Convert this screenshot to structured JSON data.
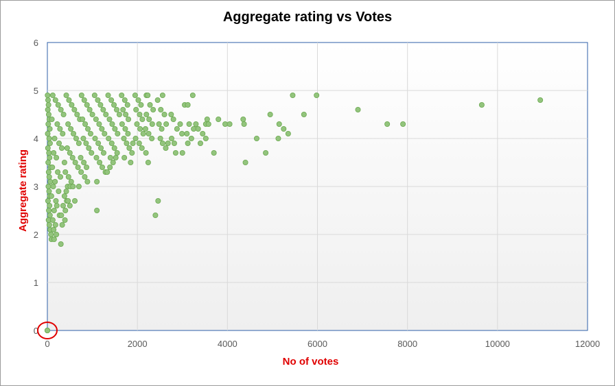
{
  "chart_data": {
    "type": "scatter",
    "title": "Aggregate rating vs Votes",
    "xlabel": "No of votes",
    "ylabel": "Aggregate rating",
    "xlim": [
      0,
      12000
    ],
    "ylim": [
      0,
      6
    ],
    "x_ticks": [
      "0",
      "2000",
      "4000",
      "6000",
      "8000",
      "10000",
      "12000"
    ],
    "y_ticks": [
      "0",
      "1",
      "2",
      "3",
      "4",
      "5",
      "6"
    ],
    "grid": true,
    "marker_color": "#93c47d",
    "marker_edge": "#6aa84f",
    "highlight_color": "#e00000",
    "highlight_point": [
      0,
      0
    ],
    "points": [
      [
        0,
        0
      ],
      [
        0,
        0
      ],
      [
        0,
        0
      ],
      [
        5,
        4.9
      ],
      [
        15,
        4.8
      ],
      [
        25,
        4.7
      ],
      [
        10,
        4.6
      ],
      [
        30,
        4.5
      ],
      [
        45,
        4.4
      ],
      [
        20,
        4.3
      ],
      [
        55,
        4.2
      ],
      [
        8,
        4.1
      ],
      [
        40,
        4.0
      ],
      [
        60,
        3.9
      ],
      [
        12,
        3.8
      ],
      [
        35,
        3.7
      ],
      [
        50,
        3.6
      ],
      [
        18,
        3.5
      ],
      [
        70,
        3.4
      ],
      [
        28,
        3.3
      ],
      [
        42,
        3.2
      ],
      [
        65,
        3.1
      ],
      [
        22,
        3.0
      ],
      [
        38,
        2.9
      ],
      [
        52,
        2.8
      ],
      [
        14,
        2.7
      ],
      [
        48,
        2.6
      ],
      [
        32,
        2.5
      ],
      [
        58,
        2.4
      ],
      [
        26,
        2.3
      ],
      [
        44,
        2.2
      ],
      [
        62,
        2.1
      ],
      [
        80,
        2.0
      ],
      [
        90,
        1.9
      ],
      [
        150,
        1.9
      ],
      [
        300,
        1.8
      ],
      [
        120,
        4.9
      ],
      [
        180,
        4.8
      ],
      [
        240,
        4.7
      ],
      [
        300,
        4.6
      ],
      [
        360,
        4.5
      ],
      [
        100,
        4.4
      ],
      [
        220,
        4.3
      ],
      [
        280,
        4.2
      ],
      [
        340,
        4.1
      ],
      [
        160,
        4.0
      ],
      [
        260,
        3.9
      ],
      [
        320,
        3.8
      ],
      [
        140,
        3.7
      ],
      [
        200,
        3.6
      ],
      [
        380,
        3.5
      ],
      [
        110,
        3.4
      ],
      [
        230,
        3.3
      ],
      [
        290,
        3.2
      ],
      [
        170,
        3.1
      ],
      [
        130,
        3.0
      ],
      [
        250,
        2.9
      ],
      [
        90,
        2.8
      ],
      [
        190,
        2.7
      ],
      [
        210,
        2.6
      ],
      [
        150,
        2.5
      ],
      [
        270,
        2.4
      ],
      [
        120,
        2.3
      ],
      [
        180,
        2.2
      ],
      [
        140,
        2.1
      ],
      [
        200,
        2.0
      ],
      [
        420,
        4.9
      ],
      [
        480,
        4.8
      ],
      [
        540,
        4.7
      ],
      [
        600,
        4.6
      ],
      [
        660,
        4.5
      ],
      [
        720,
        4.4
      ],
      [
        460,
        4.3
      ],
      [
        520,
        4.2
      ],
      [
        580,
        4.1
      ],
      [
        640,
        4.0
      ],
      [
        700,
        3.9
      ],
      [
        440,
        3.8
      ],
      [
        500,
        3.7
      ],
      [
        560,
        3.6
      ],
      [
        620,
        3.5
      ],
      [
        680,
        3.4
      ],
      [
        400,
        3.3
      ],
      [
        470,
        3.2
      ],
      [
        530,
        3.1
      ],
      [
        450,
        3.0
      ],
      [
        510,
        3.0
      ],
      [
        420,
        2.9
      ],
      [
        380,
        2.8
      ],
      [
        430,
        2.7
      ],
      [
        350,
        2.6
      ],
      [
        400,
        2.5
      ],
      [
        310,
        2.4
      ],
      [
        390,
        2.3
      ],
      [
        330,
        2.2
      ],
      [
        570,
        3.0
      ],
      [
        610,
        2.7
      ],
      [
        460,
        2.7
      ],
      [
        500,
        2.6
      ],
      [
        760,
        4.9
      ],
      [
        820,
        4.8
      ],
      [
        880,
        4.7
      ],
      [
        940,
        4.6
      ],
      [
        1000,
        4.5
      ],
      [
        780,
        4.4
      ],
      [
        840,
        4.3
      ],
      [
        900,
        4.2
      ],
      [
        960,
        4.1
      ],
      [
        800,
        4.0
      ],
      [
        860,
        3.9
      ],
      [
        920,
        3.8
      ],
      [
        980,
        3.7
      ],
      [
        740,
        3.6
      ],
      [
        810,
        3.5
      ],
      [
        870,
        3.4
      ],
      [
        750,
        3.3
      ],
      [
        830,
        3.2
      ],
      [
        890,
        3.1
      ],
      [
        1100,
        3.1
      ],
      [
        1100,
        2.5
      ],
      [
        700,
        3.0
      ],
      [
        1050,
        4.9
      ],
      [
        1120,
        4.8
      ],
      [
        1180,
        4.7
      ],
      [
        1240,
        4.6
      ],
      [
        1300,
        4.5
      ],
      [
        1080,
        4.4
      ],
      [
        1150,
        4.3
      ],
      [
        1210,
        4.2
      ],
      [
        1270,
        4.1
      ],
      [
        1060,
        4.0
      ],
      [
        1130,
        3.9
      ],
      [
        1190,
        3.8
      ],
      [
        1250,
        3.7
      ],
      [
        1090,
        3.6
      ],
      [
        1160,
        3.5
      ],
      [
        1220,
        3.4
      ],
      [
        1290,
        3.3
      ],
      [
        1330,
        3.3
      ],
      [
        1390,
        3.4
      ],
      [
        1350,
        4.9
      ],
      [
        1420,
        4.8
      ],
      [
        1480,
        4.7
      ],
      [
        1540,
        4.6
      ],
      [
        1600,
        4.5
      ],
      [
        1380,
        4.4
      ],
      [
        1440,
        4.3
      ],
      [
        1500,
        4.2
      ],
      [
        1560,
        4.1
      ],
      [
        1360,
        4.0
      ],
      [
        1430,
        3.9
      ],
      [
        1490,
        3.8
      ],
      [
        1550,
        3.7
      ],
      [
        1400,
        3.6
      ],
      [
        1460,
        3.5
      ],
      [
        1520,
        3.6
      ],
      [
        1650,
        4.9
      ],
      [
        1720,
        4.8
      ],
      [
        1780,
        4.7
      ],
      [
        1680,
        4.6
      ],
      [
        1740,
        4.5
      ],
      [
        1800,
        4.4
      ],
      [
        1660,
        4.3
      ],
      [
        1730,
        4.2
      ],
      [
        1790,
        4.1
      ],
      [
        1700,
        4.0
      ],
      [
        1760,
        3.9
      ],
      [
        1820,
        3.8
      ],
      [
        1880,
        3.7
      ],
      [
        1710,
        3.6
      ],
      [
        1850,
        3.5
      ],
      [
        1900,
        3.9
      ],
      [
        1950,
        4.9
      ],
      [
        2020,
        4.8
      ],
      [
        2080,
        4.7
      ],
      [
        1970,
        4.6
      ],
      [
        2050,
        4.5
      ],
      [
        2110,
        4.4
      ],
      [
        1990,
        4.3
      ],
      [
        2060,
        4.2
      ],
      [
        2130,
        4.1
      ],
      [
        1960,
        4.0
      ],
      [
        2040,
        3.9
      ],
      [
        2100,
        3.8
      ],
      [
        2200,
        4.9
      ],
      [
        2230,
        4.9
      ],
      [
        2280,
        4.7
      ],
      [
        2350,
        4.6
      ],
      [
        2200,
        4.5
      ],
      [
        2260,
        4.4
      ],
      [
        2330,
        4.3
      ],
      [
        2180,
        4.2
      ],
      [
        2250,
        4.1
      ],
      [
        2320,
        4.0
      ],
      [
        2190,
        3.7
      ],
      [
        2240,
        3.5
      ],
      [
        2400,
        2.4
      ],
      [
        2460,
        2.7
      ],
      [
        2450,
        4.8
      ],
      [
        2520,
        4.6
      ],
      [
        2560,
        4.9
      ],
      [
        2480,
        4.3
      ],
      [
        2540,
        4.2
      ],
      [
        2510,
        4.0
      ],
      [
        2560,
        3.9
      ],
      [
        2630,
        3.8
      ],
      [
        2680,
        3.9
      ],
      [
        2600,
        4.5
      ],
      [
        2640,
        4.3
      ],
      [
        2750,
        4.5
      ],
      [
        2800,
        4.4
      ],
      [
        2880,
        4.2
      ],
      [
        2760,
        4.0
      ],
      [
        2820,
        3.9
      ],
      [
        2950,
        4.3
      ],
      [
        2990,
        4.1
      ],
      [
        2850,
        3.7
      ],
      [
        3000,
        3.7
      ],
      [
        3050,
        4.7
      ],
      [
        3120,
        4.7
      ],
      [
        3230,
        4.9
      ],
      [
        3150,
        4.3
      ],
      [
        3250,
        4.2
      ],
      [
        3300,
        4.3
      ],
      [
        3350,
        4.2
      ],
      [
        3100,
        4.1
      ],
      [
        3200,
        4.0
      ],
      [
        3120,
        3.9
      ],
      [
        3400,
        3.9
      ],
      [
        3450,
        4.1
      ],
      [
        3520,
        4.0
      ],
      [
        3550,
        4.4
      ],
      [
        3520,
        4.3
      ],
      [
        3580,
        4.3
      ],
      [
        3700,
        3.7
      ],
      [
        3800,
        4.4
      ],
      [
        3950,
        4.3
      ],
      [
        4050,
        4.3
      ],
      [
        4350,
        4.4
      ],
      [
        4370,
        4.3
      ],
      [
        4400,
        3.5
      ],
      [
        4650,
        4.0
      ],
      [
        4850,
        3.7
      ],
      [
        4950,
        4.5
      ],
      [
        5150,
        4.3
      ],
      [
        5250,
        4.2
      ],
      [
        5130,
        4.0
      ],
      [
        5350,
        4.1
      ],
      [
        5450,
        4.9
      ],
      [
        5700,
        4.5
      ],
      [
        5980,
        4.9
      ],
      [
        6900,
        4.6
      ],
      [
        7550,
        4.3
      ],
      [
        7900,
        4.3
      ],
      [
        9650,
        4.7
      ],
      [
        10950,
        4.8
      ]
    ]
  }
}
